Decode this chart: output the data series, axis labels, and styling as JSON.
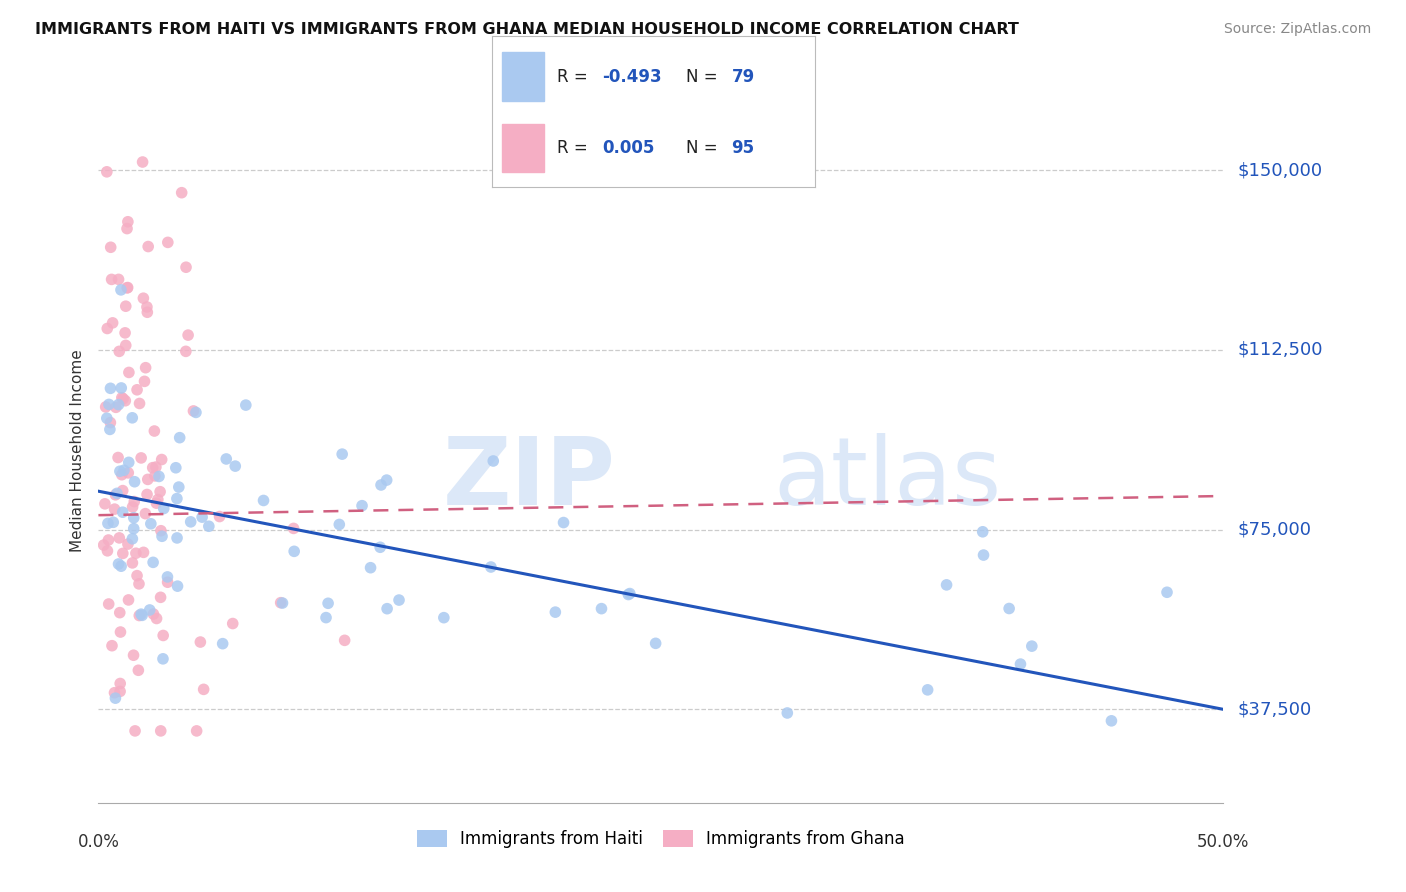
{
  "title": "IMMIGRANTS FROM HAITI VS IMMIGRANTS FROM GHANA MEDIAN HOUSEHOLD INCOME CORRELATION CHART",
  "source": "Source: ZipAtlas.com",
  "ylabel": "Median Household Income",
  "yticks": [
    37500,
    75000,
    112500,
    150000
  ],
  "ytick_labels": [
    "$37,500",
    "$75,000",
    "$112,500",
    "$150,000"
  ],
  "xmin": 0.0,
  "xmax": 50.0,
  "ymin": 18000,
  "ymax": 165000,
  "haiti_color": "#aac9f0",
  "ghana_color": "#f5aec4",
  "haiti_line_color": "#2255bb",
  "ghana_line_color": "#d06080",
  "watermark_zip": "ZIP",
  "watermark_atlas": "atlas",
  "haiti_R": -0.493,
  "haiti_N": 79,
  "ghana_R": 0.005,
  "ghana_N": 95,
  "haiti_line_x0": 0.0,
  "haiti_line_x1": 50.0,
  "haiti_line_y0": 83000,
  "haiti_line_y1": 37500,
  "ghana_line_x0": 0.0,
  "ghana_line_x1": 50.0,
  "ghana_line_y0": 78000,
  "ghana_line_y1": 82000
}
